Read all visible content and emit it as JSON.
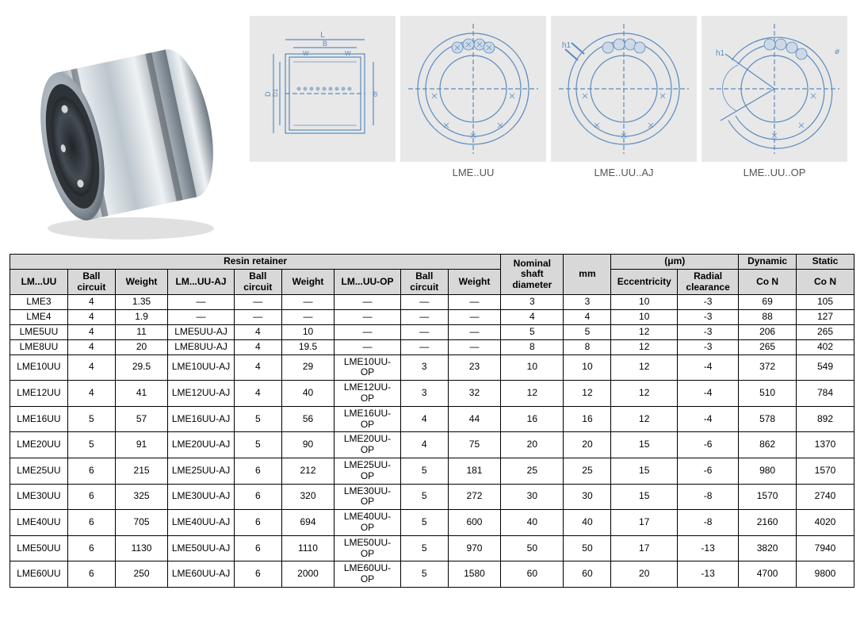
{
  "diagrams": {
    "label1": "LME..UU",
    "label2": "LME..UU..AJ",
    "label3": "LME..UU..OP"
  },
  "table": {
    "header_resin": "Resin retainer",
    "header_nominal": "Nominal shaft diameter",
    "header_mm": "mm",
    "header_um": "(μm)",
    "header_dynamic": "Dynamic",
    "header_static": "Static",
    "col_lmuu": "LM...UU",
    "col_ball": "Ball circuit",
    "col_weight": "Weight",
    "col_lmuu_aj": "LM...UU-AJ",
    "col_lmuu_op": "LM...UU-OP",
    "col_ecc": "Eccentricity",
    "col_radial": "Radial clearance",
    "col_con": "Co N",
    "rows": [
      {
        "c0": "LME3",
        "c1": "4",
        "c2": "1.35",
        "c3": "—",
        "c4": "—",
        "c5": "—",
        "c6": "—",
        "c7": "—",
        "c8": "—",
        "c9": "3",
        "c10": "3",
        "c11": "10",
        "c12": "-3",
        "c13": "69",
        "c14": "105"
      },
      {
        "c0": "LME4",
        "c1": "4",
        "c2": "1.9",
        "c3": "—",
        "c4": "—",
        "c5": "—",
        "c6": "—",
        "c7": "—",
        "c8": "—",
        "c9": "4",
        "c10": "4",
        "c11": "10",
        "c12": "-3",
        "c13": "88",
        "c14": "127"
      },
      {
        "c0": "LME5UU",
        "c1": "4",
        "c2": "11",
        "c3": "LME5UU-AJ",
        "c4": "4",
        "c5": "10",
        "c6": "—",
        "c7": "—",
        "c8": "—",
        "c9": "5",
        "c10": "5",
        "c11": "12",
        "c12": "-3",
        "c13": "206",
        "c14": "265"
      },
      {
        "c0": "LME8UU",
        "c1": "4",
        "c2": "20",
        "c3": "LME8UU-AJ",
        "c4": "4",
        "c5": "19.5",
        "c6": "—",
        "c7": "—",
        "c8": "—",
        "c9": "8",
        "c10": "8",
        "c11": "12",
        "c12": "-3",
        "c13": "265",
        "c14": "402"
      },
      {
        "c0": "LME10UU",
        "c1": "4",
        "c2": "29.5",
        "c3": "LME10UU-AJ",
        "c4": "4",
        "c5": "29",
        "c6": "LME10UU-OP",
        "c7": "3",
        "c8": "23",
        "c9": "10",
        "c10": "10",
        "c11": "12",
        "c12": "-4",
        "c13": "372",
        "c14": "549"
      },
      {
        "c0": "LME12UU",
        "c1": "4",
        "c2": "41",
        "c3": "LME12UU-AJ",
        "c4": "4",
        "c5": "40",
        "c6": "LME12UU-OP",
        "c7": "3",
        "c8": "32",
        "c9": "12",
        "c10": "12",
        "c11": "12",
        "c12": "-4",
        "c13": "510",
        "c14": "784"
      },
      {
        "c0": "LME16UU",
        "c1": "5",
        "c2": "57",
        "c3": "LME16UU-AJ",
        "c4": "5",
        "c5": "56",
        "c6": "LME16UU-OP",
        "c7": "4",
        "c8": "44",
        "c9": "16",
        "c10": "16",
        "c11": "12",
        "c12": "-4",
        "c13": "578",
        "c14": "892"
      },
      {
        "c0": "LME20UU",
        "c1": "5",
        "c2": "91",
        "c3": "LME20UU-AJ",
        "c4": "5",
        "c5": "90",
        "c6": "LME20UU-OP",
        "c7": "4",
        "c8": "75",
        "c9": "20",
        "c10": "20",
        "c11": "15",
        "c12": "-6",
        "c13": "862",
        "c14": "1370"
      },
      {
        "c0": "LME25UU",
        "c1": "6",
        "c2": "215",
        "c3": "LME25UU-AJ",
        "c4": "6",
        "c5": "212",
        "c6": "LME25UU-OP",
        "c7": "5",
        "c8": "181",
        "c9": "25",
        "c10": "25",
        "c11": "15",
        "c12": "-6",
        "c13": "980",
        "c14": "1570"
      },
      {
        "c0": "LME30UU",
        "c1": "6",
        "c2": "325",
        "c3": "LME30UU-AJ",
        "c4": "6",
        "c5": "320",
        "c6": "LME30UU-OP",
        "c7": "5",
        "c8": "272",
        "c9": "30",
        "c10": "30",
        "c11": "15",
        "c12": "-8",
        "c13": "1570",
        "c14": "2740"
      },
      {
        "c0": "LME40UU",
        "c1": "6",
        "c2": "705",
        "c3": "LME40UU-AJ",
        "c4": "6",
        "c5": "694",
        "c6": "LME40UU-OP",
        "c7": "5",
        "c8": "600",
        "c9": "40",
        "c10": "40",
        "c11": "17",
        "c12": "-8",
        "c13": "2160",
        "c14": "4020"
      },
      {
        "c0": "LME50UU",
        "c1": "6",
        "c2": "1130",
        "c3": "LME50UU-AJ",
        "c4": "6",
        "c5": "1110",
        "c6": "LME50UU-OP",
        "c7": "5",
        "c8": "970",
        "c9": "50",
        "c10": "50",
        "c11": "17",
        "c12": "-13",
        "c13": "3820",
        "c14": "7940"
      },
      {
        "c0": "LME60UU",
        "c1": "6",
        "c2": "250",
        "c3": "LME60UU-AJ",
        "c4": "6",
        "c5": "2000",
        "c6": "LME60UU-OP",
        "c7": "5",
        "c8": "1580",
        "c9": "60",
        "c10": "60",
        "c11": "20",
        "c12": "-13",
        "c13": "4700",
        "c14": "9800"
      }
    ]
  },
  "colors": {
    "bg_diagram": "#e8e8e8",
    "table_header_bg": "#d8d8d8",
    "border": "#000000",
    "diagram_stroke": "#6699cc",
    "metal_light": "#e8edf0",
    "metal_mid": "#b8c4cc",
    "metal_dark": "#556070"
  }
}
